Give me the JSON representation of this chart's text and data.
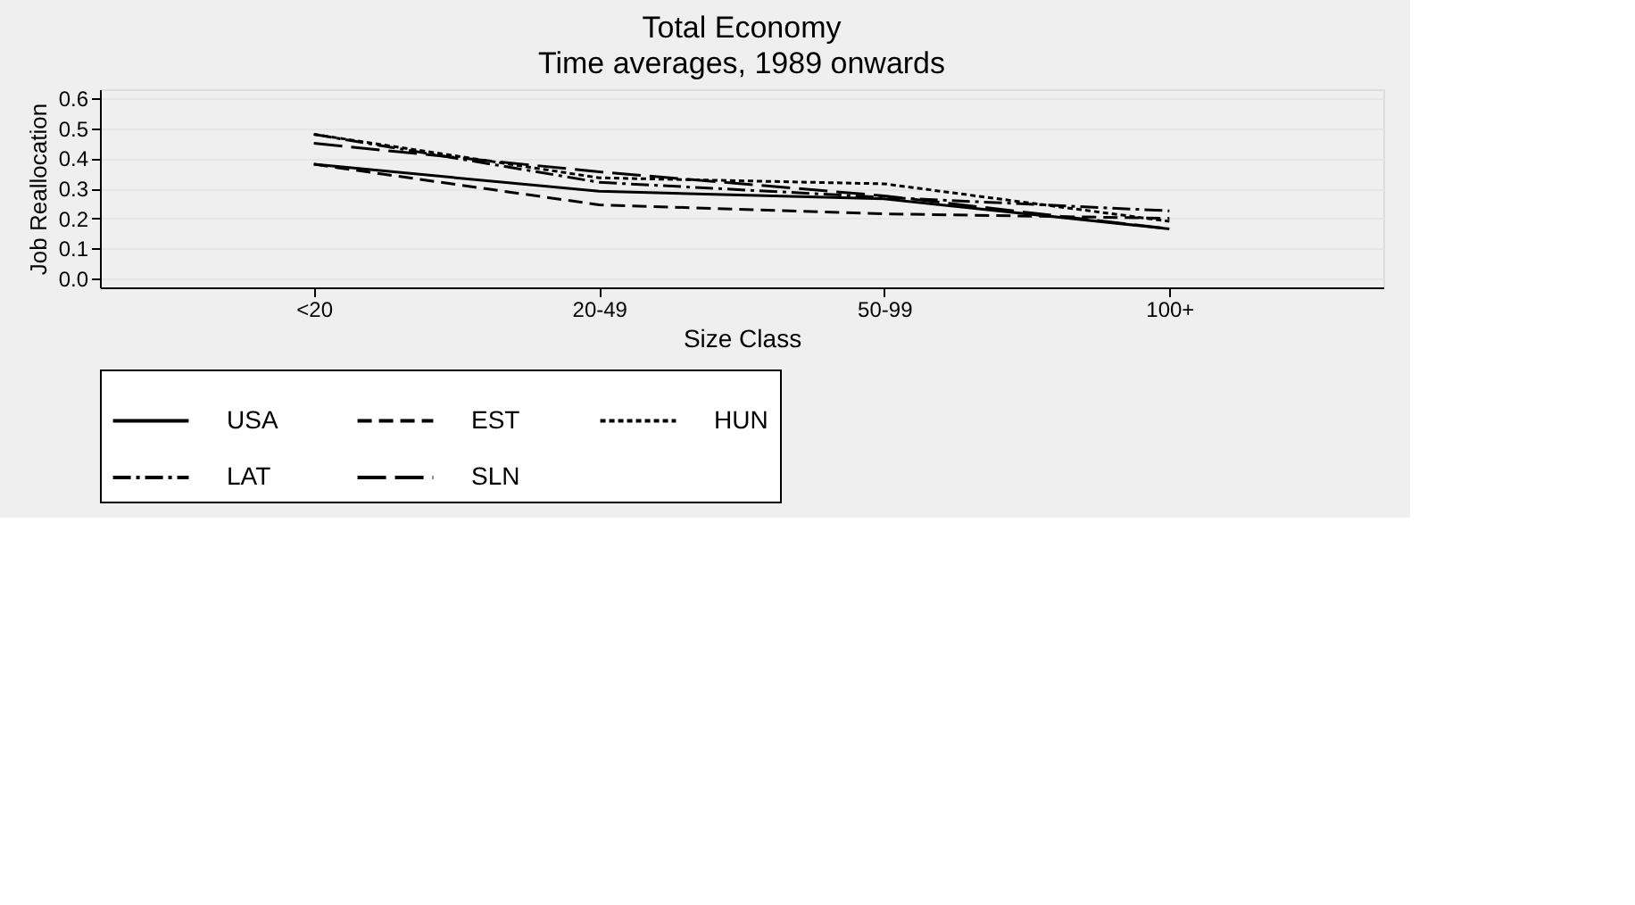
{
  "chart_data": {
    "type": "line",
    "title": "Total Economy",
    "subtitle": "Time averages, 1989 onwards",
    "xlabel": "Size Class",
    "ylabel": "Job Reallocation",
    "categories": [
      "<20",
      "20-49",
      "50-99",
      "100+"
    ],
    "series": [
      {
        "name": "USA",
        "color": "#000000",
        "line_style": "solid",
        "values": [
          0.38,
          0.29,
          0.265,
          0.165
        ]
      },
      {
        "name": "EST",
        "color": "#000000",
        "line_style": "dashed",
        "values": [
          0.38,
          0.245,
          0.215,
          0.2
        ]
      },
      {
        "name": "HUN",
        "color": "#000000",
        "line_style": "dotted",
        "values": [
          0.48,
          0.335,
          0.315,
          0.19
        ]
      },
      {
        "name": "LAT",
        "color": "#000000",
        "line_style": "dashdot",
        "values": [
          0.48,
          0.32,
          0.27,
          0.225
        ]
      },
      {
        "name": "SLN",
        "color": "#000000",
        "line_style": "longdash",
        "values": [
          0.45,
          0.355,
          0.275,
          0.165
        ]
      }
    ],
    "ylim": [
      -0.03,
      0.63
    ],
    "yticks": [
      {
        "value": 0,
        "label": "0.0"
      },
      {
        "value": 0.1,
        "label": "0.1"
      },
      {
        "value": 0.2,
        "label": "0.2"
      },
      {
        "value": 0.3,
        "label": "0.3"
      },
      {
        "value": 0.4,
        "label": "0.4"
      },
      {
        "value": 0.5,
        "label": "0.5"
      },
      {
        "value": 0.6,
        "label": "0.6"
      }
    ],
    "grid": "y",
    "legend": "bottom",
    "marker": "none"
  }
}
